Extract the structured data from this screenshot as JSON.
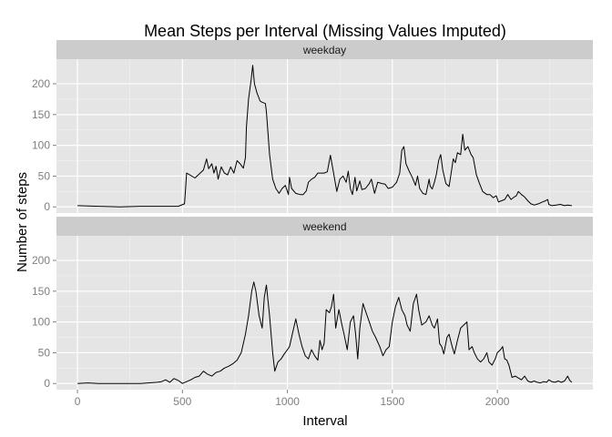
{
  "chart_data": {
    "type": "line",
    "title": "Mean Steps per Interval (Missing Values Imputed)",
    "xlabel": "Interval",
    "ylabel": "Number of steps",
    "xlim": [
      -100,
      2455
    ],
    "ylim": [
      -10,
      240
    ],
    "x_ticks": [
      0,
      500,
      1000,
      1500,
      2000
    ],
    "y_ticks": [
      0,
      50,
      100,
      150,
      200
    ],
    "grid": true,
    "facet_by": "day type",
    "panels": [
      {
        "name": "weekday",
        "points": [
          [
            0,
            2
          ],
          [
            100,
            1
          ],
          [
            200,
            0
          ],
          [
            300,
            1
          ],
          [
            400,
            1
          ],
          [
            480,
            1
          ],
          [
            510,
            5
          ],
          [
            515,
            30
          ],
          [
            520,
            55
          ],
          [
            560,
            47
          ],
          [
            600,
            60
          ],
          [
            615,
            78
          ],
          [
            625,
            62
          ],
          [
            640,
            70
          ],
          [
            650,
            55
          ],
          [
            660,
            66
          ],
          [
            670,
            45
          ],
          [
            685,
            65
          ],
          [
            700,
            55
          ],
          [
            715,
            52
          ],
          [
            730,
            65
          ],
          [
            745,
            55
          ],
          [
            760,
            75
          ],
          [
            775,
            70
          ],
          [
            790,
            63
          ],
          [
            800,
            80
          ],
          [
            805,
            130
          ],
          [
            815,
            175
          ],
          [
            828,
            208
          ],
          [
            835,
            230
          ],
          [
            843,
            200
          ],
          [
            855,
            185
          ],
          [
            870,
            172
          ],
          [
            880,
            170
          ],
          [
            895,
            168
          ],
          [
            900,
            155
          ],
          [
            915,
            85
          ],
          [
            930,
            45
          ],
          [
            945,
            30
          ],
          [
            960,
            22
          ],
          [
            975,
            30
          ],
          [
            990,
            35
          ],
          [
            1005,
            20
          ],
          [
            1010,
            48
          ],
          [
            1020,
            30
          ],
          [
            1040,
            22
          ],
          [
            1060,
            20
          ],
          [
            1075,
            20
          ],
          [
            1090,
            26
          ],
          [
            1100,
            40
          ],
          [
            1115,
            45
          ],
          [
            1130,
            48
          ],
          [
            1145,
            55
          ],
          [
            1160,
            55
          ],
          [
            1175,
            55
          ],
          [
            1190,
            57
          ],
          [
            1205,
            84
          ],
          [
            1220,
            55
          ],
          [
            1235,
            25
          ],
          [
            1250,
            45
          ],
          [
            1265,
            50
          ],
          [
            1280,
            40
          ],
          [
            1290,
            58
          ],
          [
            1300,
            30
          ],
          [
            1310,
            20
          ],
          [
            1322,
            48
          ],
          [
            1330,
            26
          ],
          [
            1345,
            42
          ],
          [
            1355,
            28
          ],
          [
            1372,
            30
          ],
          [
            1390,
            38
          ],
          [
            1400,
            45
          ],
          [
            1415,
            22
          ],
          [
            1430,
            40
          ],
          [
            1450,
            38
          ],
          [
            1465,
            37
          ],
          [
            1480,
            30
          ],
          [
            1500,
            32
          ],
          [
            1520,
            40
          ],
          [
            1535,
            55
          ],
          [
            1545,
            92
          ],
          [
            1555,
            98
          ],
          [
            1565,
            70
          ],
          [
            1580,
            58
          ],
          [
            1595,
            48
          ],
          [
            1610,
            35
          ],
          [
            1620,
            50
          ],
          [
            1630,
            30
          ],
          [
            1645,
            22
          ],
          [
            1660,
            20
          ],
          [
            1675,
            45
          ],
          [
            1680,
            34
          ],
          [
            1690,
            29
          ],
          [
            1700,
            40
          ],
          [
            1710,
            54
          ],
          [
            1720,
            75
          ],
          [
            1730,
            85
          ],
          [
            1740,
            60
          ],
          [
            1755,
            38
          ],
          [
            1770,
            33
          ],
          [
            1780,
            55
          ],
          [
            1790,
            78
          ],
          [
            1800,
            72
          ],
          [
            1810,
            88
          ],
          [
            1825,
            85
          ],
          [
            1835,
            118
          ],
          [
            1845,
            92
          ],
          [
            1860,
            98
          ],
          [
            1875,
            85
          ],
          [
            1885,
            80
          ],
          [
            1900,
            52
          ],
          [
            1915,
            38
          ],
          [
            1930,
            25
          ],
          [
            1950,
            20
          ],
          [
            1965,
            20
          ],
          [
            1980,
            15
          ],
          [
            1995,
            18
          ],
          [
            2005,
            8
          ],
          [
            2020,
            10
          ],
          [
            2035,
            12
          ],
          [
            2050,
            20
          ],
          [
            2065,
            12
          ],
          [
            2080,
            16
          ],
          [
            2090,
            18
          ],
          [
            2100,
            25
          ],
          [
            2115,
            20
          ],
          [
            2130,
            16
          ],
          [
            2145,
            10
          ],
          [
            2160,
            5
          ],
          [
            2175,
            3
          ],
          [
            2195,
            5
          ],
          [
            2215,
            8
          ],
          [
            2230,
            10
          ],
          [
            2240,
            12
          ],
          [
            2245,
            4
          ],
          [
            2260,
            2
          ],
          [
            2280,
            3
          ],
          [
            2300,
            4
          ],
          [
            2320,
            2
          ],
          [
            2335,
            3
          ],
          [
            2355,
            2
          ]
        ]
      },
      {
        "name": "weekend",
        "points": [
          [
            0,
            0
          ],
          [
            50,
            1
          ],
          [
            100,
            0
          ],
          [
            200,
            0
          ],
          [
            300,
            0
          ],
          [
            380,
            2
          ],
          [
            400,
            3
          ],
          [
            420,
            6
          ],
          [
            440,
            2
          ],
          [
            460,
            8
          ],
          [
            480,
            5
          ],
          [
            500,
            0
          ],
          [
            520,
            3
          ],
          [
            540,
            6
          ],
          [
            560,
            10
          ],
          [
            580,
            12
          ],
          [
            600,
            20
          ],
          [
            620,
            15
          ],
          [
            640,
            12
          ],
          [
            660,
            18
          ],
          [
            680,
            20
          ],
          [
            700,
            25
          ],
          [
            720,
            28
          ],
          [
            740,
            32
          ],
          [
            760,
            38
          ],
          [
            780,
            50
          ],
          [
            800,
            80
          ],
          [
            815,
            110
          ],
          [
            830,
            150
          ],
          [
            840,
            165
          ],
          [
            850,
            150
          ],
          [
            865,
            110
          ],
          [
            880,
            90
          ],
          [
            890,
            140
          ],
          [
            900,
            160
          ],
          [
            915,
            110
          ],
          [
            930,
            50
          ],
          [
            940,
            20
          ],
          [
            955,
            35
          ],
          [
            970,
            40
          ],
          [
            985,
            48
          ],
          [
            1000,
            55
          ],
          [
            1010,
            60
          ],
          [
            1020,
            75
          ],
          [
            1030,
            90
          ],
          [
            1040,
            105
          ],
          [
            1055,
            80
          ],
          [
            1070,
            60
          ],
          [
            1085,
            45
          ],
          [
            1100,
            40
          ],
          [
            1115,
            55
          ],
          [
            1130,
            45
          ],
          [
            1145,
            38
          ],
          [
            1155,
            70
          ],
          [
            1165,
            55
          ],
          [
            1175,
            65
          ],
          [
            1185,
            120
          ],
          [
            1200,
            115
          ],
          [
            1210,
            125
          ],
          [
            1220,
            145
          ],
          [
            1230,
            90
          ],
          [
            1245,
            120
          ],
          [
            1260,
            95
          ],
          [
            1270,
            80
          ],
          [
            1285,
            55
          ],
          [
            1300,
            100
          ],
          [
            1315,
            110
          ],
          [
            1325,
            80
          ],
          [
            1335,
            40
          ],
          [
            1345,
            90
          ],
          [
            1360,
            130
          ],
          [
            1375,
            115
          ],
          [
            1390,
            100
          ],
          [
            1405,
            85
          ],
          [
            1420,
            75
          ],
          [
            1440,
            60
          ],
          [
            1455,
            45
          ],
          [
            1470,
            55
          ],
          [
            1485,
            60
          ],
          [
            1500,
            100
          ],
          [
            1515,
            125
          ],
          [
            1530,
            140
          ],
          [
            1545,
            120
          ],
          [
            1560,
            110
          ],
          [
            1570,
            95
          ],
          [
            1585,
            85
          ],
          [
            1600,
            130
          ],
          [
            1615,
            145
          ],
          [
            1625,
            120
          ],
          [
            1640,
            95
          ],
          [
            1660,
            100
          ],
          [
            1675,
            110
          ],
          [
            1690,
            95
          ],
          [
            1700,
            90
          ],
          [
            1715,
            105
          ],
          [
            1725,
            65
          ],
          [
            1735,
            60
          ],
          [
            1745,
            48
          ],
          [
            1760,
            75
          ],
          [
            1770,
            80
          ],
          [
            1785,
            60
          ],
          [
            1795,
            48
          ],
          [
            1810,
            70
          ],
          [
            1825,
            90
          ],
          [
            1840,
            95
          ],
          [
            1855,
            100
          ],
          [
            1865,
            55
          ],
          [
            1880,
            60
          ],
          [
            1890,
            50
          ],
          [
            1905,
            40
          ],
          [
            1920,
            35
          ],
          [
            1935,
            40
          ],
          [
            1950,
            50
          ],
          [
            1960,
            35
          ],
          [
            1975,
            30
          ],
          [
            1990,
            40
          ],
          [
            2000,
            50
          ],
          [
            2015,
            55
          ],
          [
            2025,
            60
          ],
          [
            2035,
            40
          ],
          [
            2045,
            38
          ],
          [
            2055,
            30
          ],
          [
            2070,
            10
          ],
          [
            2085,
            12
          ],
          [
            2100,
            9
          ],
          [
            2115,
            6
          ],
          [
            2130,
            12
          ],
          [
            2145,
            4
          ],
          [
            2160,
            2
          ],
          [
            2175,
            4
          ],
          [
            2190,
            2
          ],
          [
            2205,
            1
          ],
          [
            2220,
            3
          ],
          [
            2235,
            2
          ],
          [
            2245,
            6
          ],
          [
            2260,
            3
          ],
          [
            2275,
            2
          ],
          [
            2290,
            4
          ],
          [
            2305,
            2
          ],
          [
            2320,
            4
          ],
          [
            2335,
            12
          ],
          [
            2345,
            5
          ],
          [
            2355,
            2
          ]
        ]
      }
    ]
  }
}
